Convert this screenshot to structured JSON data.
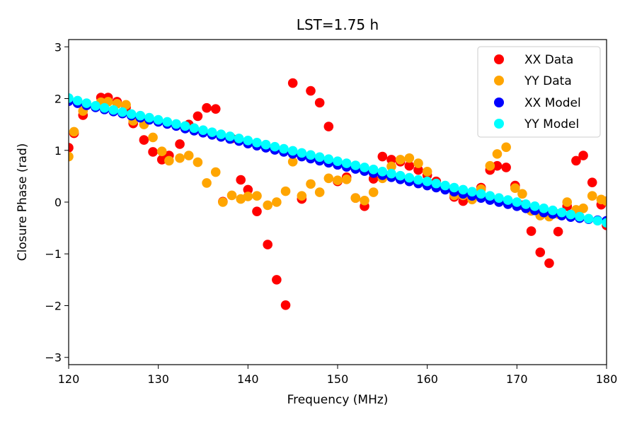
{
  "chart_data": {
    "type": "scatter",
    "title": "LST=1.75 h",
    "xlabel": "Frequency (MHz)",
    "ylabel": "Closure Phase (rad)",
    "xlim": [
      120,
      180
    ],
    "ylim": [
      -3.14,
      3.14
    ],
    "xticks": [
      120,
      130,
      140,
      150,
      160,
      170,
      180
    ],
    "yticks": [
      -3,
      -2,
      -1,
      0,
      1,
      2,
      3
    ],
    "ytick_labels": [
      "−3",
      "−2",
      "−1",
      "0",
      "1",
      "2",
      "3"
    ],
    "grid": false,
    "legend_position": "top-right",
    "series": [
      {
        "name": "XX Data",
        "color": "#ff0000",
        "x": [
          120.0,
          120.6,
          121.6,
          123.6,
          124.4,
          125.4,
          126.4,
          127.2,
          128.4,
          129.4,
          130.4,
          131.2,
          132.4,
          133.4,
          134.4,
          135.4,
          136.4,
          137.2,
          138.2,
          139.2,
          140.0,
          141.0,
          142.2,
          143.2,
          144.2,
          145.0,
          146.0,
          147.0,
          148.0,
          149.0,
          150.0,
          151.0,
          152.0,
          153.0,
          154.0,
          155.0,
          156.0,
          157.0,
          158.0,
          159.0,
          160.0,
          161.0,
          162.0,
          163.0,
          164.0,
          165.0,
          166.0,
          167.0,
          167.8,
          168.8,
          169.8,
          170.6,
          171.6,
          172.6,
          173.6,
          174.6,
          175.6,
          176.6,
          177.4,
          178.4,
          179.4,
          180.0
        ],
        "y": [
          1.05,
          1.33,
          1.68,
          2.02,
          2.02,
          1.94,
          1.83,
          1.52,
          1.2,
          0.97,
          0.82,
          0.9,
          1.12,
          1.5,
          1.66,
          1.82,
          1.8,
          0.01,
          1.23,
          0.43,
          0.24,
          -0.18,
          -0.82,
          -1.5,
          -1.99,
          2.3,
          0.06,
          2.15,
          1.92,
          1.46,
          0.4,
          0.48,
          0.08,
          -0.08,
          0.45,
          0.88,
          0.82,
          0.78,
          0.7,
          0.62,
          0.52,
          0.4,
          0.3,
          0.1,
          0.02,
          0.08,
          0.28,
          0.62,
          0.7,
          0.67,
          0.32,
          -0.06,
          -0.56,
          -0.97,
          -1.18,
          -0.57,
          -0.08,
          0.8,
          0.9,
          0.38,
          -0.05,
          -0.45
        ]
      },
      {
        "name": "YY Data",
        "color": "#ffa500",
        "x": [
          120.0,
          120.6,
          121.6,
          123.6,
          124.4,
          125.4,
          126.4,
          127.2,
          128.4,
          129.4,
          130.4,
          131.2,
          132.4,
          133.4,
          134.4,
          135.4,
          136.4,
          137.2,
          138.2,
          139.2,
          140.0,
          141.0,
          142.2,
          143.2,
          144.2,
          145.0,
          146.0,
          147.0,
          148.0,
          149.0,
          150.0,
          151.0,
          152.0,
          153.0,
          154.0,
          155.0,
          156.0,
          157.0,
          158.0,
          159.0,
          160.0,
          161.0,
          162.0,
          163.0,
          164.0,
          165.0,
          166.0,
          167.0,
          167.8,
          168.8,
          169.8,
          170.6,
          171.6,
          172.6,
          173.6,
          174.6,
          175.6,
          176.6,
          177.4,
          178.4,
          179.4,
          180.0
        ],
        "y": [
          0.88,
          1.36,
          1.76,
          1.93,
          1.94,
          1.9,
          1.88,
          1.57,
          1.5,
          1.25,
          0.98,
          0.8,
          0.85,
          0.9,
          0.77,
          0.37,
          0.58,
          0.0,
          0.13,
          0.06,
          0.11,
          0.12,
          -0.06,
          0.0,
          0.21,
          0.78,
          0.12,
          0.35,
          0.19,
          0.46,
          0.42,
          0.44,
          0.08,
          0.03,
          0.19,
          0.46,
          0.69,
          0.82,
          0.85,
          0.75,
          0.59,
          0.34,
          0.25,
          0.13,
          0.13,
          0.05,
          0.25,
          0.7,
          0.93,
          1.06,
          0.27,
          0.16,
          -0.17,
          -0.26,
          -0.28,
          -0.23,
          0.0,
          -0.15,
          -0.12,
          0.12,
          0.05,
          0.02
        ]
      },
      {
        "name": "XX Model",
        "color": "#0000ff",
        "x": [
          120.0,
          121.0,
          122.0,
          123.0,
          124.0,
          125.0,
          126.0,
          127.0,
          128.0,
          129.0,
          130.0,
          131.0,
          132.0,
          133.0,
          134.0,
          135.0,
          136.0,
          137.0,
          138.0,
          139.0,
          140.0,
          141.0,
          142.0,
          143.0,
          144.0,
          145.0,
          146.0,
          147.0,
          148.0,
          149.0,
          150.0,
          151.0,
          152.0,
          153.0,
          154.0,
          155.0,
          156.0,
          157.0,
          158.0,
          159.0,
          160.0,
          161.0,
          162.0,
          163.0,
          164.0,
          165.0,
          166.0,
          167.0,
          168.0,
          169.0,
          170.0,
          171.0,
          172.0,
          173.0,
          174.0,
          175.0,
          176.0,
          177.0,
          178.0,
          179.0,
          180.0
        ],
        "y": [
          1.95,
          1.91,
          1.87,
          1.83,
          1.79,
          1.75,
          1.71,
          1.67,
          1.63,
          1.59,
          1.55,
          1.51,
          1.47,
          1.42,
          1.38,
          1.34,
          1.3,
          1.26,
          1.22,
          1.18,
          1.13,
          1.09,
          1.05,
          1.01,
          0.97,
          0.93,
          0.88,
          0.84,
          0.8,
          0.76,
          0.72,
          0.68,
          0.64,
          0.6,
          0.56,
          0.52,
          0.48,
          0.44,
          0.4,
          0.36,
          0.32,
          0.28,
          0.24,
          0.2,
          0.16,
          0.12,
          0.08,
          0.04,
          0.0,
          -0.04,
          -0.08,
          -0.12,
          -0.16,
          -0.2,
          -0.23,
          -0.26,
          -0.29,
          -0.31,
          -0.33,
          -0.35,
          -0.36
        ]
      },
      {
        "name": "YY Model",
        "color": "#00ffff",
        "x": [
          120.0,
          121.0,
          122.0,
          123.0,
          124.0,
          125.0,
          126.0,
          127.0,
          128.0,
          129.0,
          130.0,
          131.0,
          132.0,
          133.0,
          134.0,
          135.0,
          136.0,
          137.0,
          138.0,
          139.0,
          140.0,
          141.0,
          142.0,
          143.0,
          144.0,
          145.0,
          146.0,
          147.0,
          148.0,
          149.0,
          150.0,
          151.0,
          152.0,
          153.0,
          154.0,
          155.0,
          156.0,
          157.0,
          158.0,
          159.0,
          160.0,
          161.0,
          162.0,
          163.0,
          164.0,
          165.0,
          166.0,
          167.0,
          168.0,
          169.0,
          170.0,
          171.0,
          172.0,
          173.0,
          174.0,
          175.0,
          176.0,
          177.0,
          178.0,
          179.0,
          180.0
        ],
        "y": [
          2.01,
          1.96,
          1.91,
          1.86,
          1.82,
          1.78,
          1.74,
          1.7,
          1.67,
          1.63,
          1.59,
          1.55,
          1.51,
          1.47,
          1.43,
          1.39,
          1.35,
          1.31,
          1.27,
          1.23,
          1.19,
          1.15,
          1.11,
          1.07,
          1.03,
          0.99,
          0.95,
          0.91,
          0.87,
          0.83,
          0.79,
          0.75,
          0.71,
          0.67,
          0.63,
          0.59,
          0.55,
          0.51,
          0.47,
          0.43,
          0.4,
          0.36,
          0.32,
          0.28,
          0.24,
          0.2,
          0.16,
          0.12,
          0.08,
          0.04,
          0.0,
          -0.04,
          -0.08,
          -0.12,
          -0.16,
          -0.2,
          -0.24,
          -0.28,
          -0.32,
          -0.36,
          -0.4
        ]
      }
    ]
  }
}
